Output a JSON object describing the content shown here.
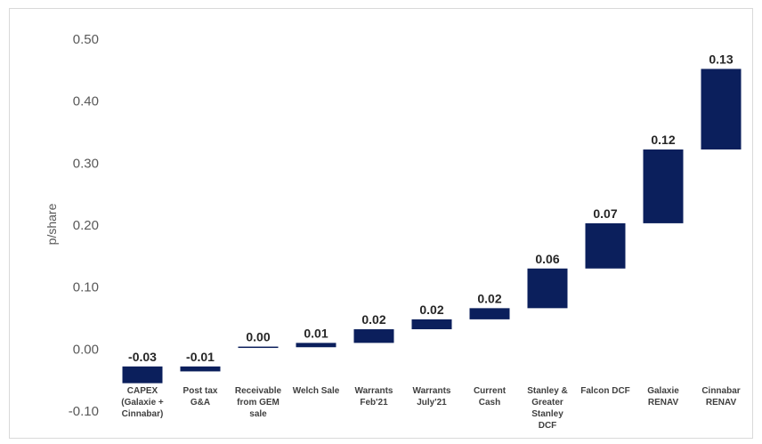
{
  "chart_data": {
    "type": "bar",
    "subtype": "waterfall",
    "title": "",
    "xlabel": "",
    "ylabel": "p/share",
    "ylim": [
      -0.1,
      0.5
    ],
    "yticks": [
      "0.50",
      "0.40",
      "0.30",
      "0.20",
      "0.10",
      "0.00",
      "-0.10"
    ],
    "grid": false,
    "legend": "none",
    "bar_color": "#0b1f5c",
    "categories": [
      [
        "CAPEX",
        "(Galaxie +",
        "Cinnabar)"
      ],
      [
        "Post tax",
        "G&A"
      ],
      [
        "Receivable",
        "from GEM",
        "sale"
      ],
      [
        "Welch Sale"
      ],
      [
        "Warrants",
        "Feb'21"
      ],
      [
        "Warrants",
        "July'21"
      ],
      [
        "Current",
        "Cash"
      ],
      [
        "Stanley &",
        "Greater",
        "Stanley",
        "DCF"
      ],
      [
        "Falcon DCF"
      ],
      [
        "Galaxie",
        "RENAV"
      ],
      [
        "Cinnabar",
        "RENAV"
      ]
    ],
    "bars": [
      {
        "start": -0.028,
        "end": -0.055,
        "label": "-0.03"
      },
      {
        "start": -0.028,
        "end": -0.036,
        "label": "-0.01"
      },
      {
        "start": 0.003,
        "end": 0.004,
        "label": "0.00"
      },
      {
        "start": 0.003,
        "end": 0.01,
        "label": "0.01"
      },
      {
        "start": 0.01,
        "end": 0.032,
        "label": "0.02"
      },
      {
        "start": 0.032,
        "end": 0.048,
        "label": "0.02"
      },
      {
        "start": 0.048,
        "end": 0.066,
        "label": "0.02"
      },
      {
        "start": 0.066,
        "end": 0.13,
        "label": "0.06"
      },
      {
        "start": 0.13,
        "end": 0.203,
        "label": "0.07"
      },
      {
        "start": 0.203,
        "end": 0.322,
        "label": "0.12"
      },
      {
        "start": 0.322,
        "end": 0.452,
        "label": "0.13"
      }
    ]
  }
}
